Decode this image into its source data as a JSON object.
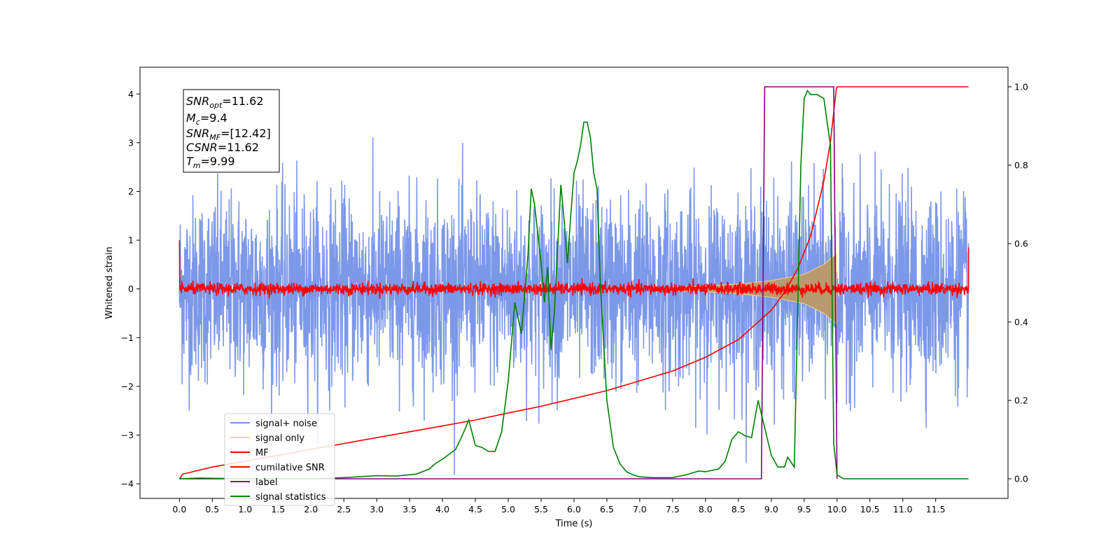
{
  "chart_data": {
    "type": "line",
    "title": "",
    "xlabel": "Time (s)",
    "ylabel": "Whitened strain",
    "xlim": [
      -0.6,
      12.6
    ],
    "ylim": [
      -4.3,
      4.55
    ],
    "y2lim": [
      -0.05,
      1.05
    ],
    "xticks": [
      0.0,
      0.5,
      1.0,
      1.5,
      2.0,
      2.5,
      3.0,
      3.5,
      4.0,
      4.5,
      5.0,
      5.5,
      6.0,
      6.5,
      7.0,
      7.5,
      8.0,
      8.5,
      9.0,
      9.5,
      10.0,
      10.5,
      11.0,
      11.5
    ],
    "xtick_labels": [
      "0.0",
      "0.5",
      "1.0",
      "1.5",
      "2.0",
      "2.5",
      "3.0",
      "3.5",
      "4.0",
      "4.5",
      "5.0",
      "5.5",
      "6.0",
      "6.5",
      "7.0",
      "7.5",
      "8.0",
      "8.5",
      "9.0",
      "9.5",
      "10.0",
      "10.5",
      "11.0",
      "11.5"
    ],
    "yticks": [
      -4,
      -3,
      -2,
      -1,
      0,
      1,
      2,
      3,
      4
    ],
    "ytick_labels": [
      "−4",
      "−3",
      "−2",
      "−1",
      "0",
      "1",
      "2",
      "3",
      "4"
    ],
    "y2ticks": [
      0.0,
      0.2,
      0.4,
      0.6,
      0.8,
      1.0
    ],
    "y2tick_labels": [
      "0.0",
      "0.2",
      "0.4",
      "0.6",
      "0.8",
      "1.0"
    ],
    "grid": false,
    "legend_position": "lower-left",
    "annotation": {
      "lines": [
        {
          "main": "SNR",
          "sub": "opt",
          "rest": "=11.62"
        },
        {
          "main": "M",
          "sub": "c",
          "rest": "=9.4"
        },
        {
          "main": "SNR",
          "sub": "MF",
          "rest": "=[12.42]"
        },
        {
          "main": "CSNR",
          "sub": "",
          "rest": "=11.62"
        },
        {
          "main": "T",
          "sub": "m",
          "rest": "=9.99"
        }
      ]
    },
    "series": [
      {
        "name": "signal+ noise",
        "axis": "left",
        "color": "#7592e8",
        "noise_amplitude": 2.2,
        "x_range": [
          0.0,
          12.0
        ]
      },
      {
        "name": "signal only",
        "axis": "left",
        "color": "#f8d389",
        "envelope": {
          "x": [
            7.5,
            8.0,
            8.5,
            9.0,
            9.5,
            9.8,
            9.99
          ],
          "amp": [
            0.04,
            0.06,
            0.1,
            0.17,
            0.3,
            0.5,
            0.72
          ]
        }
      },
      {
        "name": "MF",
        "axis": "left",
        "color": "#ff0000",
        "start_value": 1.0,
        "end_value": 0.85,
        "x_range": [
          0.0,
          12.0
        ]
      },
      {
        "name": "cumilative SNR",
        "axis": "right",
        "color": "#ff0000",
        "x": [
          0.0,
          0.05,
          0.5,
          1.0,
          1.5,
          2.0,
          2.5,
          3.0,
          3.5,
          4.0,
          4.5,
          5.0,
          5.5,
          6.0,
          6.5,
          7.0,
          7.5,
          8.0,
          8.5,
          9.0,
          9.2,
          9.4,
          9.6,
          9.8,
          9.9,
          9.99,
          10.0,
          12.0
        ],
        "y": [
          0.0,
          0.012,
          0.03,
          0.045,
          0.06,
          0.075,
          0.09,
          0.105,
          0.12,
          0.135,
          0.15,
          0.168,
          0.185,
          0.205,
          0.225,
          0.25,
          0.275,
          0.31,
          0.355,
          0.43,
          0.475,
          0.535,
          0.62,
          0.76,
          0.86,
          0.995,
          1.0,
          1.0
        ]
      },
      {
        "name": "label",
        "axis": "right",
        "color": "#800080",
        "x": [
          0.0,
          8.85,
          8.9,
          9.95,
          10.0,
          10.0
        ],
        "y": [
          0.0,
          0.0,
          1.0,
          1.0,
          0.0,
          0.0
        ]
      },
      {
        "name": "signal statistics",
        "axis": "right",
        "color": "#008000",
        "x": [
          0.0,
          0.3,
          1.0,
          2.0,
          2.5,
          3.0,
          3.3,
          3.6,
          3.8,
          3.9,
          4.0,
          4.2,
          4.3,
          4.4,
          4.5,
          4.6,
          4.7,
          4.8,
          4.9,
          5.0,
          5.1,
          5.2,
          5.3,
          5.35,
          5.4,
          5.5,
          5.55,
          5.6,
          5.65,
          5.7,
          5.8,
          5.85,
          5.9,
          5.95,
          6.0,
          6.05,
          6.1,
          6.15,
          6.2,
          6.25,
          6.3,
          6.35,
          6.4,
          6.5,
          6.6,
          6.7,
          6.8,
          6.9,
          7.0,
          7.2,
          7.5,
          7.7,
          7.9,
          8.0,
          8.2,
          8.3,
          8.4,
          8.5,
          8.6,
          8.7,
          8.8,
          8.9,
          9.0,
          9.1,
          9.2,
          9.25,
          9.35,
          9.45,
          9.5,
          9.55,
          9.6,
          9.7,
          9.8,
          9.9,
          9.95,
          10.0,
          10.05,
          10.1,
          12.0
        ],
        "y": [
          0.0,
          0.002,
          0.0,
          0.0,
          0.003,
          0.008,
          0.007,
          0.012,
          0.025,
          0.04,
          0.05,
          0.075,
          0.11,
          0.15,
          0.085,
          0.08,
          0.07,
          0.07,
          0.12,
          0.25,
          0.45,
          0.37,
          0.57,
          0.74,
          0.7,
          0.55,
          0.45,
          0.54,
          0.33,
          0.42,
          0.75,
          0.66,
          0.55,
          0.67,
          0.78,
          0.81,
          0.85,
          0.91,
          0.91,
          0.87,
          0.78,
          0.74,
          0.5,
          0.2,
          0.08,
          0.038,
          0.018,
          0.01,
          0.005,
          0.003,
          0.003,
          0.01,
          0.02,
          0.018,
          0.025,
          0.045,
          0.1,
          0.12,
          0.11,
          0.105,
          0.2,
          0.13,
          0.06,
          0.03,
          0.03,
          0.055,
          0.03,
          0.8,
          0.97,
          0.99,
          0.98,
          0.98,
          0.97,
          0.85,
          0.09,
          0.01,
          0.005,
          0.0,
          0.0
        ]
      }
    ]
  }
}
